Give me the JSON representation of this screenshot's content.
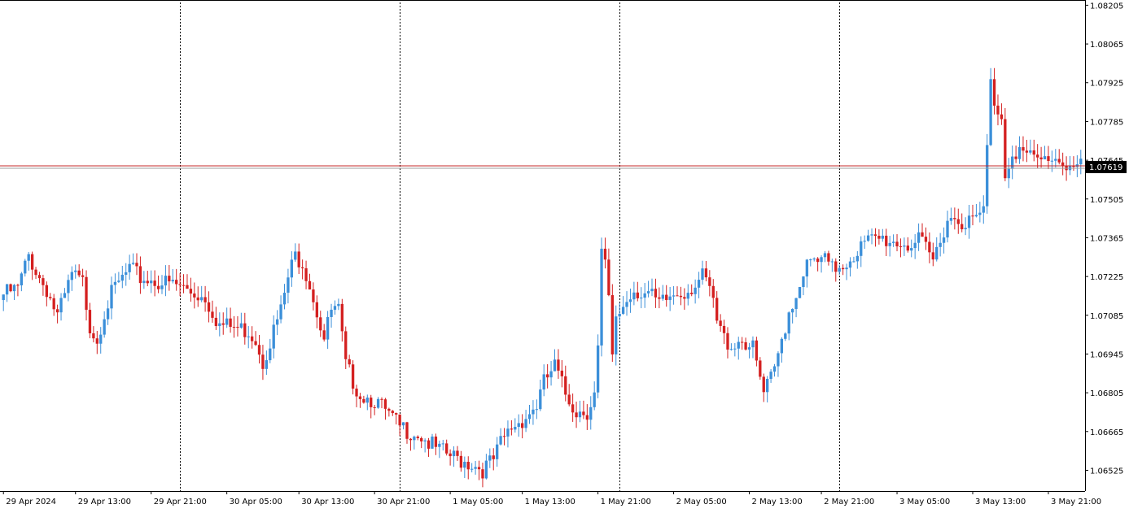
{
  "chart_data": {
    "type": "candlestick",
    "title": "",
    "xlabel": "",
    "ylabel": "",
    "ylim": [
      1.0645,
      1.08215
    ],
    "grid": "vertical dotted separators at every 8 hours",
    "colors": {
      "up": "#3b8fd9",
      "down": "#d42020",
      "background": "#ffffff",
      "current_price_line": "#c62828",
      "separator": "#000000"
    },
    "y_ticks": [
      "1.08205",
      "1.08065",
      "1.07925",
      "1.07785",
      "1.07645",
      "1.07505",
      "1.07365",
      "1.07225",
      "1.07085",
      "1.06945",
      "1.06805",
      "1.06665",
      "1.06525"
    ],
    "x_ticks": [
      {
        "label": "29 Apr 2024",
        "index": 0
      },
      {
        "label": "29 Apr 13:00",
        "index": 20
      },
      {
        "label": "29 Apr 21:00",
        "index": 41
      },
      {
        "label": "30 Apr 05:00",
        "index": 62
      },
      {
        "label": "30 Apr 13:00",
        "index": 82
      },
      {
        "label": "30 Apr 21:00",
        "index": 103
      },
      {
        "label": "1 May 05:00",
        "index": 124
      },
      {
        "label": "1 May 13:00",
        "index": 144
      },
      {
        "label": "1 May 21:00",
        "index": 165
      },
      {
        "label": "2 May 05:00",
        "index": 186
      },
      {
        "label": "2 May 13:00",
        "index": 207
      },
      {
        "label": "2 May 21:00",
        "index": 227
      },
      {
        "label": "3 May 05:00",
        "index": 248
      },
      {
        "label": "3 May 13:00",
        "index": 269
      },
      {
        "label": "3 May 21:00",
        "index": 290
      }
    ],
    "separators_at_index": [
      49,
      110,
      171,
      232
    ],
    "current_price": {
      "value": 1.07619,
      "label": "1.07619"
    },
    "bar_count": 300,
    "keypoints": [
      [
        0,
        1.0716
      ],
      [
        4,
        1.0718
      ],
      [
        7,
        1.073
      ],
      [
        10,
        1.0722
      ],
      [
        12,
        1.0718
      ],
      [
        15,
        1.0708
      ],
      [
        17,
        1.0715
      ],
      [
        19,
        1.0723
      ],
      [
        22,
        1.072
      ],
      [
        24,
        1.0705
      ],
      [
        26,
        1.07
      ],
      [
        28,
        1.071
      ],
      [
        30,
        1.0716
      ],
      [
        32,
        1.072
      ],
      [
        35,
        1.0725
      ],
      [
        38,
        1.0722
      ],
      [
        42,
        1.0721
      ],
      [
        45,
        1.072
      ],
      [
        49,
        1.0719
      ],
      [
        52,
        1.0717
      ],
      [
        56,
        1.0715
      ],
      [
        60,
        1.0705
      ],
      [
        64,
        1.0704
      ],
      [
        68,
        1.0703
      ],
      [
        70,
        1.07
      ],
      [
        72,
        1.0692
      ],
      [
        75,
        1.0703
      ],
      [
        77,
        1.071
      ],
      [
        79,
        1.0722
      ],
      [
        81,
        1.073
      ],
      [
        83,
        1.0728
      ],
      [
        85,
        1.072
      ],
      [
        87,
        1.071
      ],
      [
        89,
        1.07
      ],
      [
        91,
        1.071
      ],
      [
        93,
        1.071
      ],
      [
        95,
        1.069
      ],
      [
        97,
        1.0685
      ],
      [
        99,
        1.068
      ],
      [
        103,
        1.0678
      ],
      [
        107,
        1.0672
      ],
      [
        110,
        1.0668
      ],
      [
        115,
        1.0666
      ],
      [
        120,
        1.066
      ],
      [
        125,
        1.0657
      ],
      [
        130,
        1.0655
      ],
      [
        133,
        1.0653
      ],
      [
        136,
        1.0656
      ],
      [
        138,
        1.0662
      ],
      [
        141,
        1.0668
      ],
      [
        145,
        1.0672
      ],
      [
        148,
        1.0676
      ],
      [
        150,
        1.0684
      ],
      [
        153,
        1.069
      ],
      [
        156,
        1.068
      ],
      [
        159,
        1.0674
      ],
      [
        162,
        1.0674
      ],
      [
        164,
        1.068
      ],
      [
        165,
        1.0696
      ],
      [
        166,
        1.073
      ],
      [
        167,
        1.0726
      ],
      [
        168,
        1.0714
      ],
      [
        169,
        1.0692
      ],
      [
        170,
        1.0708
      ],
      [
        172,
        1.0712
      ],
      [
        175,
        1.0718
      ],
      [
        179,
        1.0716
      ],
      [
        182,
        1.0712
      ],
      [
        186,
        1.0716
      ],
      [
        190,
        1.0718
      ],
      [
        194,
        1.0722
      ],
      [
        196,
        1.0718
      ],
      [
        198,
        1.0706
      ],
      [
        200,
        1.07
      ],
      [
        202,
        1.0698
      ],
      [
        205,
        1.07
      ],
      [
        208,
        1.0696
      ],
      [
        211,
        1.068
      ],
      [
        214,
        1.0688
      ],
      [
        216,
        1.07
      ],
      [
        218,
        1.071
      ],
      [
        220,
        1.0716
      ],
      [
        222,
        1.0725
      ],
      [
        224,
        1.0727
      ],
      [
        228,
        1.0728
      ],
      [
        230,
        1.0725
      ],
      [
        234,
        1.0728
      ],
      [
        237,
        1.0732
      ],
      [
        240,
        1.0735
      ],
      [
        244,
        1.0736
      ],
      [
        248,
        1.0735
      ],
      [
        252,
        1.0734
      ],
      [
        254,
        1.0735
      ],
      [
        256,
        1.0732
      ],
      [
        258,
        1.0728
      ],
      [
        260,
        1.0736
      ],
      [
        262,
        1.0744
      ],
      [
        266,
        1.0743
      ],
      [
        269,
        1.0742
      ],
      [
        272,
        1.0746
      ],
      [
        274,
        1.0792
      ],
      [
        275,
        1.0786
      ],
      [
        277,
        1.078
      ],
      [
        278,
        1.076
      ],
      [
        280,
        1.0768
      ],
      [
        282,
        1.0768
      ],
      [
        285,
        1.0765
      ],
      [
        288,
        1.0764
      ],
      [
        291,
        1.0766
      ],
      [
        294,
        1.0764
      ],
      [
        297,
        1.0762
      ],
      [
        299,
        1.0762
      ]
    ]
  }
}
